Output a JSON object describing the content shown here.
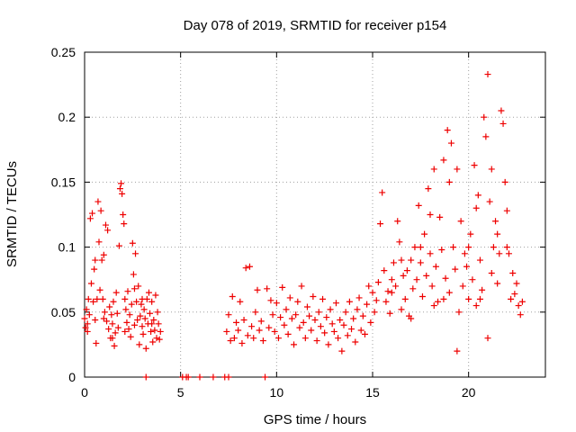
{
  "chart_data": {
    "type": "scatter",
    "title": "Day 078 of 2019, SRMTID for receiver p154",
    "xlabel": "GPS time / hours",
    "ylabel": "SRMTID / TECUs",
    "xlim": [
      0,
      24
    ],
    "ylim": [
      0,
      0.25
    ],
    "xticks": [
      0,
      5,
      10,
      15,
      20
    ],
    "xtick_labels": [
      "0",
      "5",
      "10",
      "15",
      "20"
    ],
    "yticks": [
      0,
      0.05,
      0.1,
      0.15,
      0.2,
      0.25
    ],
    "ytick_labels": [
      "0",
      "0.05",
      "0.1",
      "0.15",
      "0.2",
      "0.25"
    ],
    "grid": true,
    "marker": "+",
    "series_color": "#ee0000",
    "series": [
      {
        "name": "SRMTID",
        "points": [
          [
            0.0,
            0.045
          ],
          [
            0.05,
            0.038
          ],
          [
            0.1,
            0.052
          ],
          [
            0.15,
            0.041
          ],
          [
            0.2,
            0.06
          ],
          [
            0.25,
            0.048
          ],
          [
            0.3,
            0.122
          ],
          [
            0.35,
            0.072
          ],
          [
            0.4,
            0.126
          ],
          [
            0.45,
            0.058
          ],
          [
            0.5,
            0.083
          ],
          [
            0.55,
            0.044
          ],
          [
            0.6,
            0.026
          ],
          [
            0.65,
            0.06
          ],
          [
            0.7,
            0.135
          ],
          [
            0.75,
            0.104
          ],
          [
            0.8,
            0.067
          ],
          [
            0.85,
            0.128
          ],
          [
            0.9,
            0.09
          ],
          [
            0.95,
            0.06
          ],
          [
            1.0,
            0.094
          ],
          [
            1.05,
            0.05
          ],
          [
            1.1,
            0.117
          ],
          [
            1.15,
            0.043
          ],
          [
            1.2,
            0.113
          ],
          [
            1.25,
            0.037
          ],
          [
            1.3,
            0.054
          ],
          [
            1.35,
            0.03
          ],
          [
            1.4,
            0.048
          ],
          [
            1.45,
            0.041
          ],
          [
            1.5,
            0.058
          ],
          [
            1.55,
            0.024
          ],
          [
            1.6,
            0.034
          ],
          [
            1.65,
            0.065
          ],
          [
            1.7,
            0.049
          ],
          [
            1.75,
            0.038
          ],
          [
            1.8,
            0.101
          ],
          [
            1.85,
            0.145
          ],
          [
            1.9,
            0.149
          ],
          [
            1.95,
            0.141
          ],
          [
            2.0,
            0.125
          ],
          [
            2.05,
            0.118
          ],
          [
            2.1,
            0.06
          ],
          [
            2.15,
            0.052
          ],
          [
            2.2,
            0.042
          ],
          [
            2.25,
            0.066
          ],
          [
            2.3,
            0.037
          ],
          [
            2.35,
            0.048
          ],
          [
            2.4,
            0.031
          ],
          [
            2.45,
            0.056
          ],
          [
            2.5,
            0.103
          ],
          [
            2.55,
            0.079
          ],
          [
            2.6,
            0.068
          ],
          [
            2.65,
            0.095
          ],
          [
            2.7,
            0.058
          ],
          [
            2.75,
            0.044
          ],
          [
            2.8,
            0.07
          ],
          [
            2.85,
            0.025
          ],
          [
            2.9,
            0.047
          ],
          [
            2.95,
            0.056
          ],
          [
            3.0,
            0.039
          ],
          [
            3.05,
            0.033
          ],
          [
            3.1,
            0.052
          ],
          [
            3.15,
            0.045
          ],
          [
            3.2,
            0.022
          ],
          [
            3.25,
            0.06
          ],
          [
            3.3,
            0.041
          ],
          [
            3.35,
            0.065
          ],
          [
            3.4,
            0.049
          ],
          [
            3.45,
            0.035
          ],
          [
            3.5,
            0.058
          ],
          [
            3.55,
            0.027
          ],
          [
            3.6,
            0.044
          ],
          [
            3.65,
            0.036
          ],
          [
            3.7,
            0.063
          ],
          [
            3.75,
            0.03
          ],
          [
            3.8,
            0.05
          ],
          [
            3.85,
            0.041
          ],
          [
            3.9,
            0.029
          ],
          [
            3.95,
            0.035
          ],
          [
            0.15,
            0.035
          ],
          [
            0.55,
            0.09
          ],
          [
            1.0,
            0.045
          ],
          [
            1.45,
            0.03
          ],
          [
            2.1,
            0.035
          ],
          [
            2.6,
            0.04
          ],
          [
            3.0,
            0.06
          ],
          [
            3.5,
            0.041
          ],
          [
            3.2,
            0.0
          ],
          [
            5.1,
            0.0
          ],
          [
            5.3,
            0.0
          ],
          [
            5.4,
            0.0
          ],
          [
            6.0,
            0.0
          ],
          [
            6.7,
            0.0
          ],
          [
            7.3,
            0.0
          ],
          [
            7.5,
            0.0
          ],
          [
            9.4,
            0.0
          ],
          [
            7.4,
            0.035
          ],
          [
            7.5,
            0.048
          ],
          [
            7.6,
            0.028
          ],
          [
            7.7,
            0.062
          ],
          [
            7.8,
            0.03
          ],
          [
            7.9,
            0.042
          ],
          [
            8.0,
            0.036
          ],
          [
            8.1,
            0.058
          ],
          [
            8.2,
            0.026
          ],
          [
            8.3,
            0.044
          ],
          [
            8.4,
            0.084
          ],
          [
            8.5,
            0.032
          ],
          [
            8.6,
            0.085
          ],
          [
            8.7,
            0.039
          ],
          [
            8.8,
            0.03
          ],
          [
            8.9,
            0.05
          ],
          [
            9.0,
            0.067
          ],
          [
            9.1,
            0.036
          ],
          [
            9.2,
            0.043
          ],
          [
            9.3,
            0.028
          ],
          [
            9.5,
            0.068
          ],
          [
            9.6,
            0.038
          ],
          [
            9.7,
            0.059
          ],
          [
            9.8,
            0.048
          ],
          [
            9.9,
            0.035
          ],
          [
            10.0,
            0.057
          ],
          [
            10.1,
            0.03
          ],
          [
            10.2,
            0.046
          ],
          [
            10.3,
            0.069
          ],
          [
            10.4,
            0.04
          ],
          [
            10.5,
            0.052
          ],
          [
            10.6,
            0.033
          ],
          [
            10.7,
            0.061
          ],
          [
            10.8,
            0.045
          ],
          [
            10.9,
            0.025
          ],
          [
            11.0,
            0.048
          ],
          [
            11.1,
            0.058
          ],
          [
            11.2,
            0.038
          ],
          [
            11.3,
            0.07
          ],
          [
            11.4,
            0.042
          ],
          [
            11.5,
            0.03
          ],
          [
            11.6,
            0.054
          ],
          [
            11.7,
            0.047
          ],
          [
            11.8,
            0.036
          ],
          [
            11.9,
            0.062
          ],
          [
            12.0,
            0.044
          ],
          [
            12.1,
            0.028
          ],
          [
            12.2,
            0.05
          ],
          [
            12.3,
            0.039
          ],
          [
            12.4,
            0.06
          ],
          [
            12.5,
            0.034
          ],
          [
            12.6,
            0.046
          ],
          [
            12.7,
            0.025
          ],
          [
            12.8,
            0.052
          ],
          [
            12.9,
            0.041
          ],
          [
            13.0,
            0.035
          ],
          [
            13.1,
            0.057
          ],
          [
            13.2,
            0.03
          ],
          [
            13.3,
            0.044
          ],
          [
            13.4,
            0.02
          ],
          [
            13.5,
            0.04
          ],
          [
            13.6,
            0.05
          ],
          [
            13.7,
            0.032
          ],
          [
            13.8,
            0.058
          ],
          [
            13.9,
            0.037
          ],
          [
            14.0,
            0.045
          ],
          [
            14.1,
            0.027
          ],
          [
            14.2,
            0.052
          ],
          [
            14.3,
            0.061
          ],
          [
            14.4,
            0.036
          ],
          [
            14.5,
            0.047
          ],
          [
            14.6,
            0.033
          ],
          [
            14.7,
            0.056
          ],
          [
            14.8,
            0.07
          ],
          [
            14.9,
            0.042
          ],
          [
            15.0,
            0.065
          ],
          [
            15.1,
            0.05
          ],
          [
            15.2,
            0.059
          ],
          [
            15.3,
            0.073
          ],
          [
            15.4,
            0.118
          ],
          [
            15.5,
            0.142
          ],
          [
            15.6,
            0.082
          ],
          [
            15.7,
            0.058
          ],
          [
            15.8,
            0.066
          ],
          [
            15.9,
            0.049
          ],
          [
            16.0,
            0.075
          ],
          [
            16.1,
            0.088
          ],
          [
            16.2,
            0.07
          ],
          [
            16.3,
            0.12
          ],
          [
            16.4,
            0.104
          ],
          [
            16.5,
            0.052
          ],
          [
            16.6,
            0.078
          ],
          [
            16.7,
            0.06
          ],
          [
            16.8,
            0.082
          ],
          [
            16.9,
            0.047
          ],
          [
            17.0,
            0.09
          ],
          [
            17.1,
            0.068
          ],
          [
            17.2,
            0.1
          ],
          [
            17.3,
            0.075
          ],
          [
            17.4,
            0.132
          ],
          [
            17.5,
            0.088
          ],
          [
            17.6,
            0.062
          ],
          [
            17.7,
            0.11
          ],
          [
            17.8,
            0.078
          ],
          [
            17.9,
            0.145
          ],
          [
            18.0,
            0.095
          ],
          [
            18.1,
            0.07
          ],
          [
            18.2,
            0.16
          ],
          [
            18.3,
            0.085
          ],
          [
            18.4,
            0.058
          ],
          [
            18.5,
            0.123
          ],
          [
            18.6,
            0.098
          ],
          [
            18.7,
            0.167
          ],
          [
            18.8,
            0.076
          ],
          [
            18.9,
            0.19
          ],
          [
            19.0,
            0.065
          ],
          [
            19.1,
            0.18
          ],
          [
            19.2,
            0.1
          ],
          [
            19.3,
            0.083
          ],
          [
            19.4,
            0.16
          ],
          [
            19.5,
            0.05
          ],
          [
            19.6,
            0.12
          ],
          [
            19.7,
            0.07
          ],
          [
            19.8,
            0.095
          ],
          [
            19.9,
            0.085
          ],
          [
            20.0,
            0.06
          ],
          [
            20.1,
            0.11
          ],
          [
            20.2,
            0.075
          ],
          [
            20.3,
            0.163
          ],
          [
            20.4,
            0.055
          ],
          [
            20.5,
            0.14
          ],
          [
            20.6,
            0.09
          ],
          [
            20.7,
            0.067
          ],
          [
            20.8,
            0.2
          ],
          [
            20.9,
            0.185
          ],
          [
            21.0,
            0.233
          ],
          [
            21.1,
            0.135
          ],
          [
            21.2,
            0.08
          ],
          [
            21.3,
            0.1
          ],
          [
            21.4,
            0.12
          ],
          [
            21.5,
            0.072
          ],
          [
            21.6,
            0.095
          ],
          [
            21.7,
            0.205
          ],
          [
            21.8,
            0.195
          ],
          [
            21.9,
            0.15
          ],
          [
            22.0,
            0.128
          ],
          [
            22.1,
            0.095
          ],
          [
            22.2,
            0.06
          ],
          [
            22.3,
            0.08
          ],
          [
            22.4,
            0.064
          ],
          [
            22.5,
            0.072
          ],
          [
            22.6,
            0.055
          ],
          [
            22.7,
            0.048
          ],
          [
            22.8,
            0.058
          ],
          [
            19.4,
            0.02
          ],
          [
            21.0,
            0.03
          ],
          [
            20.6,
            0.06
          ],
          [
            18.2,
            0.055
          ],
          [
            17.0,
            0.045
          ],
          [
            16.0,
            0.065
          ],
          [
            18.0,
            0.125
          ],
          [
            19.0,
            0.15
          ],
          [
            20.0,
            0.1
          ],
          [
            21.2,
            0.16
          ],
          [
            22.0,
            0.1
          ],
          [
            17.5,
            0.1
          ],
          [
            16.5,
            0.09
          ],
          [
            18.7,
            0.06
          ],
          [
            20.4,
            0.13
          ],
          [
            21.5,
            0.11
          ]
        ]
      }
    ]
  }
}
